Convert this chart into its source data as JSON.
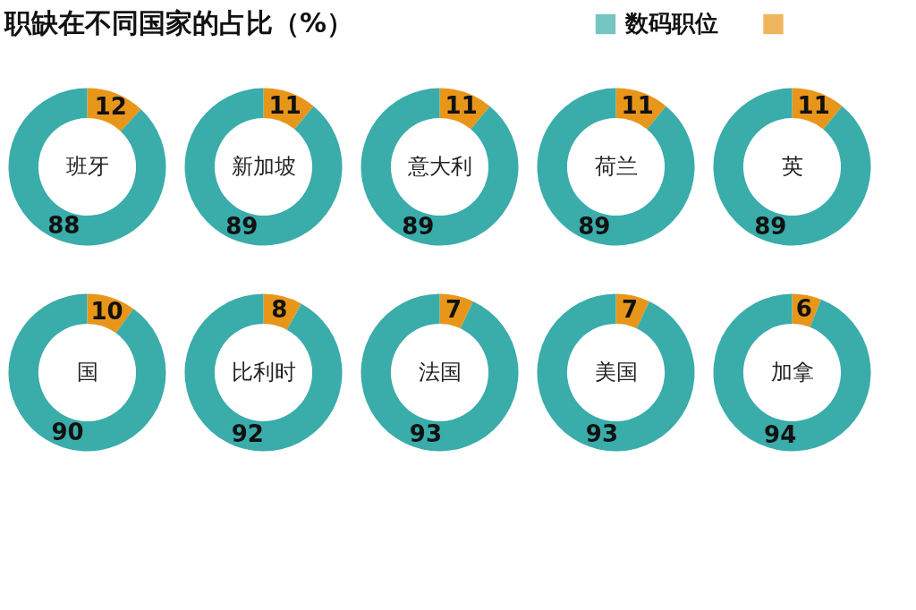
{
  "chart_data": [
    {
      "type": "donut",
      "title": "职缺在不同国家的占比（%）",
      "legend": "top right",
      "categories": [
        null,
        "数码职位"
      ],
      "colors": [
        "#e8961a",
        "#3aacaa"
      ],
      "values": [
        12,
        88
      ],
      "data_labels": true,
      "annotations": [
        "班牙"
      ]
    },
    {
      "type": "donut",
      "categories": [
        null,
        null
      ],
      "colors": [
        "#e8961a",
        "#3aacaa"
      ],
      "values": [
        11,
        89
      ],
      "data_labels": true,
      "annotations": [
        "新加坡"
      ]
    },
    {
      "type": "donut",
      "categories": [
        null,
        null
      ],
      "colors": [
        "#e8961a",
        "#3aacaa"
      ],
      "values": [
        11,
        89
      ],
      "data_labels": true,
      "annotations": [
        "意大利"
      ]
    },
    {
      "type": "donut",
      "categories": [
        null,
        null
      ],
      "colors": [
        "#e8961a",
        "#3aacaa"
      ],
      "values": [
        11,
        89
      ],
      "data_labels": true,
      "annotations": [
        "荷兰"
      ]
    },
    {
      "type": "donut",
      "categories": [
        null,
        null
      ],
      "colors": [
        "#e8961a",
        "#3aacaa"
      ],
      "values": [
        11,
        89
      ],
      "data_labels": true,
      "annotations": [
        "英"
      ]
    },
    {
      "type": "donut",
      "categories": [
        null,
        null
      ],
      "colors": [
        "#e8961a",
        "#3aacaa"
      ],
      "values": [
        10,
        90
      ],
      "data_labels": true,
      "annotations": [
        "国"
      ]
    },
    {
      "type": "donut",
      "categories": [
        null,
        null
      ],
      "colors": [
        "#e8961a",
        "#3aacaa"
      ],
      "values": [
        8,
        92
      ],
      "data_labels": true,
      "annotations": [
        "比利时"
      ]
    },
    {
      "type": "donut",
      "categories": [
        null,
        null
      ],
      "colors": [
        "#e8961a",
        "#3aacaa"
      ],
      "values": [
        7,
        93
      ],
      "data_labels": true,
      "annotations": [
        "法国"
      ]
    },
    {
      "type": "donut",
      "categories": [
        null,
        null
      ],
      "colors": [
        "#e8961a",
        "#3aacaa"
      ],
      "values": [
        7,
        93
      ],
      "data_labels": true,
      "annotations": [
        "美国"
      ]
    },
    {
      "type": "donut",
      "categories": [
        null,
        null
      ],
      "colors": [
        "#e8961a",
        "#3aacaa"
      ],
      "values": [
        6,
        94
      ],
      "data_labels": true,
      "annotations": [
        "加拿"
      ]
    }
  ]
}
